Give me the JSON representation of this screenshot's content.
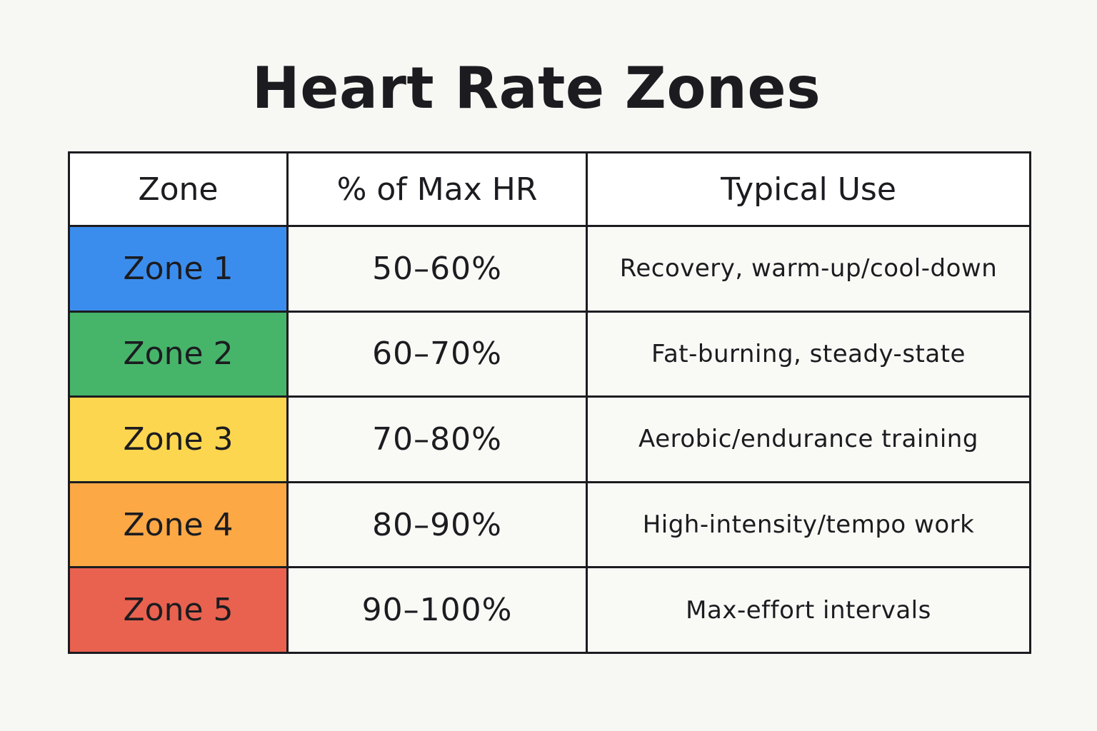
{
  "title": "Heart Rate Zones",
  "table": {
    "headers": {
      "zone": "Zone",
      "pct": "% of Max HR",
      "use": "Typical Use"
    },
    "rows": [
      {
        "zone": "Zone 1",
        "pct": "50–60%",
        "use": "Recovery, warm-up/cool-down",
        "color": "#3b8ded"
      },
      {
        "zone": "Zone 2",
        "pct": "60–70%",
        "use": "Fat-burning, steady-state",
        "color": "#46b56a"
      },
      {
        "zone": "Zone 3",
        "pct": "70–80%",
        "use": "Aerobic/endurance training",
        "color": "#fdd64f"
      },
      {
        "zone": "Zone 4",
        "pct": "80–90%",
        "use": "High-intensity/tempo work",
        "color": "#fba845"
      },
      {
        "zone": "Zone 5",
        "pct": "90–100%",
        "use": "Max-effort intervals",
        "color": "#e9624f"
      }
    ]
  }
}
